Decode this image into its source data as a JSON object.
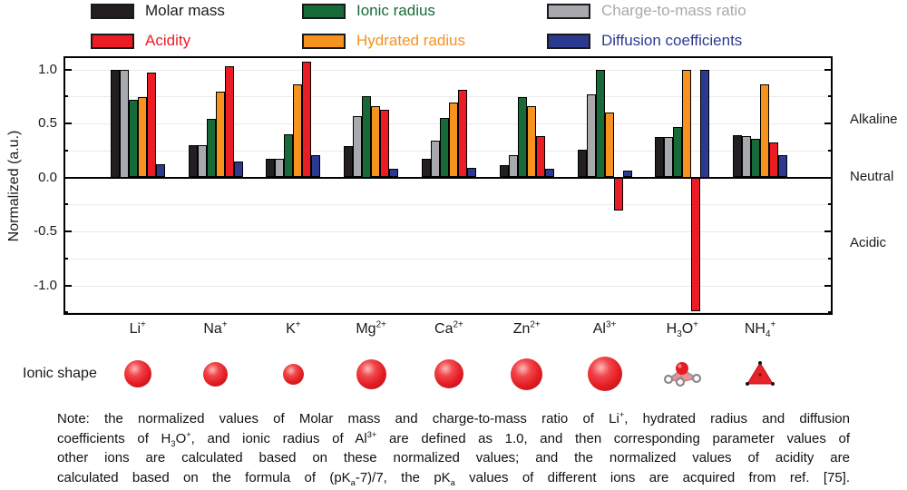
{
  "figure": {
    "legend": {
      "items": [
        {
          "label": "Molar mass",
          "color": "#231f20",
          "text_color": "#1a1a1a"
        },
        {
          "label": "Ionic radius",
          "color": "#166b38",
          "text_color": "#166b38"
        },
        {
          "label": "Charge-to-mass ratio",
          "color": "#a7a9ac",
          "text_color": "#a7a9ac"
        },
        {
          "label": "Acidity",
          "color": "#ec1c24",
          "text_color": "#ec1c24"
        },
        {
          "label": "Hydrated radius",
          "color": "#f6921e",
          "text_color": "#f6921e"
        },
        {
          "label": "Diffusion coefficients",
          "color": "#2b3990",
          "text_color": "#2b3990"
        }
      ]
    },
    "y_axis": {
      "label": "Normalized (a.u.)",
      "ticks": [
        "1.0",
        "0.5",
        "0.0",
        "-0.5",
        "-1.0"
      ],
      "tick_values": [
        1.0,
        0.5,
        0.0,
        -0.5,
        -1.0
      ],
      "minor_tick_values": [
        0.75,
        0.25,
        -0.25,
        -0.75,
        -1.25
      ]
    },
    "right_labels": {
      "alkaline": "Alkaline",
      "neutral": "Neutral",
      "acidic": "Acidic"
    },
    "ionic_shape_label": "Ionic shape",
    "note_lines": [
      [
        [
          "n",
          "Note: the normalized values of Molar mass and charge-to-mass ratio of Li"
        ],
        [
          "sup",
          "+"
        ],
        [
          "n",
          ", hydrated radius and diffusion"
        ]
      ],
      [
        [
          "n",
          "coefficients of H"
        ],
        [
          "sub",
          "3"
        ],
        [
          "n",
          "O"
        ],
        [
          "sup",
          "+"
        ],
        [
          "n",
          ", and ionic radius of Al"
        ],
        [
          "sup",
          "3+"
        ],
        [
          "n",
          " are defined as 1.0, and then corresponding parameter values of"
        ]
      ],
      [
        [
          "n",
          "other ions are calculated based on these normalized values; and the normalized values of acidity are"
        ]
      ],
      [
        [
          "n",
          "calculated based on the formula of (pK"
        ],
        [
          "sub",
          "a"
        ],
        [
          "n",
          "-7)/7, the pK"
        ],
        [
          "sub",
          "a"
        ],
        [
          "n",
          " values of different ions are acquired from ref. [75]."
        ]
      ]
    ]
  },
  "chart_data": {
    "type": "bar",
    "title": "",
    "xlabel": "",
    "ylabel": "Normalized (a.u.)",
    "ylim": [
      -1.27,
      1.12
    ],
    "grid": "horizontal, minor every 0.25",
    "legend_position": "top",
    "categories": [
      "Li+",
      "Na+",
      "K+",
      "Mg2+",
      "Ca2+",
      "Zn2+",
      "Al3+",
      "H3O+",
      "NH4+"
    ],
    "category_labels": [
      [
        [
          "n",
          "Li"
        ],
        [
          "sup",
          "+"
        ]
      ],
      [
        [
          "n",
          "Na"
        ],
        [
          "sup",
          "+"
        ]
      ],
      [
        [
          "n",
          "K"
        ],
        [
          "sup",
          "+"
        ]
      ],
      [
        [
          "n",
          "Mg"
        ],
        [
          "sup",
          "2+"
        ]
      ],
      [
        [
          "n",
          "Ca"
        ],
        [
          "sup",
          "2+"
        ]
      ],
      [
        [
          "n",
          "Zn"
        ],
        [
          "sup",
          "2+"
        ]
      ],
      [
        [
          "n",
          "Al"
        ],
        [
          "sup",
          "3+"
        ]
      ],
      [
        [
          "n",
          "H"
        ],
        [
          "sub",
          "3"
        ],
        [
          "n",
          "O"
        ],
        [
          "sup",
          "+"
        ]
      ],
      [
        [
          "n",
          "NH"
        ],
        [
          "sub",
          "4"
        ],
        [
          "sup",
          "+"
        ]
      ]
    ],
    "series": [
      {
        "name": "Molar mass",
        "color": "#231f20",
        "values": [
          1.0,
          0.3,
          0.17,
          0.29,
          0.17,
          0.11,
          0.26,
          0.37,
          0.39
        ]
      },
      {
        "name": "Charge-to-mass ratio",
        "color": "#a7a9ac",
        "values": [
          1.0,
          0.3,
          0.17,
          0.57,
          0.34,
          0.21,
          0.77,
          0.37,
          0.38
        ]
      },
      {
        "name": "Ionic radius",
        "color": "#166b38",
        "values": [
          0.72,
          0.54,
          0.4,
          0.75,
          0.55,
          0.74,
          1.0,
          0.47,
          0.36
        ]
      },
      {
        "name": "Hydrated radius",
        "color": "#f6921e",
        "values": [
          0.74,
          0.79,
          0.86,
          0.66,
          0.69,
          0.66,
          0.6,
          1.0,
          0.86
        ]
      },
      {
        "name": "Acidity",
        "color": "#ec1c24",
        "values": [
          0.97,
          1.03,
          1.07,
          0.63,
          0.81,
          0.38,
          -0.31,
          -1.24,
          0.32
        ]
      },
      {
        "name": "Diffusion coefficients",
        "color": "#2b3990",
        "values": [
          0.12,
          0.15,
          0.21,
          0.08,
          0.09,
          0.08,
          0.06,
          1.0,
          0.21
        ]
      }
    ]
  },
  "ionic_shapes": [
    {
      "ion": "Li+",
      "type": "sphere",
      "diameter": 30
    },
    {
      "ion": "Na+",
      "type": "sphere",
      "diameter": 27
    },
    {
      "ion": "K+",
      "type": "sphere",
      "diameter": 23
    },
    {
      "ion": "Mg2+",
      "type": "sphere",
      "diameter": 33
    },
    {
      "ion": "Ca2+",
      "type": "sphere",
      "diameter": 32
    },
    {
      "ion": "Zn2+",
      "type": "sphere",
      "diameter": 35
    },
    {
      "ion": "Al3+",
      "type": "sphere",
      "diameter": 38
    },
    {
      "ion": "H3O+",
      "type": "hydronium-molecule"
    },
    {
      "ion": "NH4+",
      "type": "ammonium-tetrahedron"
    }
  ]
}
